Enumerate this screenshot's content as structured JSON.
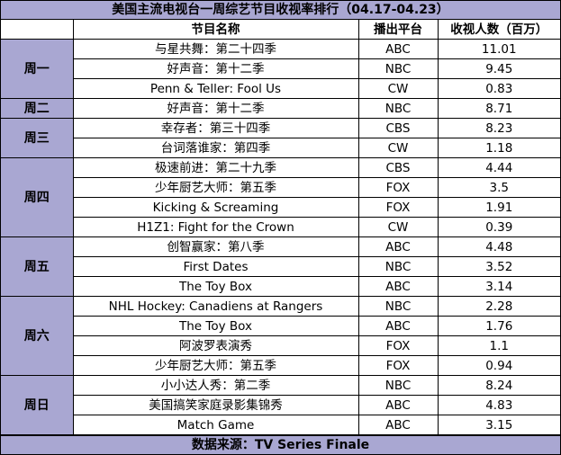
{
  "title": "美国主流电视台一周综艺节目收视率排行（04.17-04.23）",
  "headers": {
    "day": "",
    "program": "节目名称",
    "network": "播出平台",
    "viewers": "收视人数（百万）"
  },
  "groups": [
    {
      "day": "周一",
      "rows": [
        {
          "program": "与星共舞：第二十四季",
          "network": "ABC",
          "viewers": "11.01"
        },
        {
          "program": "好声音：第十二季",
          "network": "NBC",
          "viewers": "9.45"
        },
        {
          "program": "Penn & Teller: Fool Us",
          "network": "CW",
          "viewers": "0.83"
        }
      ]
    },
    {
      "day": "周二",
      "rows": [
        {
          "program": "好声音：第十二季",
          "network": "NBC",
          "viewers": "8.71"
        }
      ]
    },
    {
      "day": "周三",
      "rows": [
        {
          "program": "幸存者：第三十四季",
          "network": "CBS",
          "viewers": "8.23"
        },
        {
          "program": "台词落谁家：第四季",
          "network": "CW",
          "viewers": "1.18"
        }
      ]
    },
    {
      "day": "周四",
      "rows": [
        {
          "program": "极速前进：第二十九季",
          "network": "CBS",
          "viewers": "4.44"
        },
        {
          "program": "少年厨艺大师：第五季",
          "network": "FOX",
          "viewers": "3.5"
        },
        {
          "program": "Kicking & Screaming",
          "network": "FOX",
          "viewers": "1.91"
        },
        {
          "program": "H1Z1: Fight for the Crown",
          "network": "CW",
          "viewers": "0.39"
        }
      ]
    },
    {
      "day": "周五",
      "rows": [
        {
          "program": "创智赢家：第八季",
          "network": "ABC",
          "viewers": "4.48"
        },
        {
          "program": "First Dates",
          "network": "NBC",
          "viewers": "3.52"
        },
        {
          "program": "The Toy Box",
          "network": "ABC",
          "viewers": "3.14"
        }
      ]
    },
    {
      "day": "周六",
      "rows": [
        {
          "program": "NHL Hockey: Canadiens at Rangers",
          "network": "NBC",
          "viewers": "2.28"
        },
        {
          "program": "The Toy Box",
          "network": "ABC",
          "viewers": "1.76"
        },
        {
          "program": "阿波罗表演秀",
          "network": "FOX",
          "viewers": "1.1"
        },
        {
          "program": "少年厨艺大师：第五季",
          "network": "FOX",
          "viewers": "0.94"
        }
      ]
    },
    {
      "day": "周日",
      "rows": [
        {
          "program": "小小达人秀：第二季",
          "network": "NBC",
          "viewers": "8.24"
        },
        {
          "program": "美国搞笑家庭录影集锦秀",
          "network": "ABC",
          "viewers": "4.83"
        },
        {
          "program": "Match Game",
          "network": "ABC",
          "viewers": "3.15"
        }
      ]
    }
  ],
  "footer": "数据来源：TV Series Finale",
  "colors": {
    "header_band": "#a9a7d2",
    "day_cell": "#a9a7d2",
    "grid": "#000000"
  }
}
